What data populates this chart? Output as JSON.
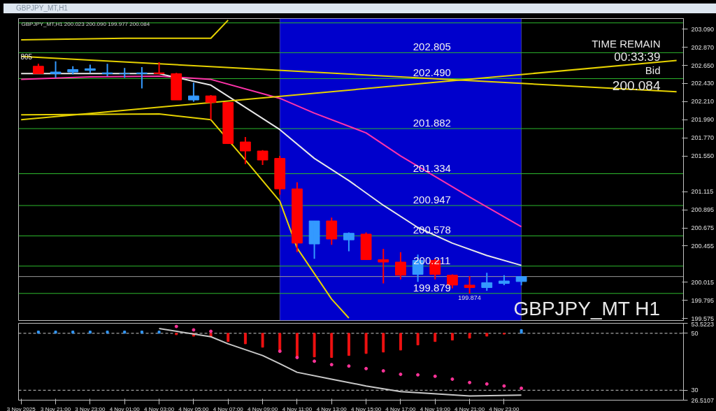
{
  "chart_data": [
    {
      "type": "candlestick",
      "title": "GBPJPY_MT,H1",
      "subtitle": "GBPJPY_MT,H1  200.023 200.090 199.977 200.084",
      "x": [
        "2025-11-03T20:00",
        "2025-11-03T21:00",
        "2025-11-03T22:00",
        "2025-11-03T23:00",
        "2025-11-04T00:00",
        "2025-11-04T01:00",
        "2025-11-04T02:00",
        "2025-11-04T03:00",
        "2025-11-04T04:00",
        "2025-11-04T05:00",
        "2025-11-04T06:00",
        "2025-11-04T07:00",
        "2025-11-04T08:00",
        "2025-11-04T09:00",
        "2025-11-04T10:00",
        "2025-11-04T11:00",
        "2025-11-04T12:00",
        "2025-11-04T13:00",
        "2025-11-04T14:00",
        "2025-11-04T15:00",
        "2025-11-04T16:00",
        "2025-11-04T17:00",
        "2025-11-04T18:00",
        "2025-11-04T19:00",
        "2025-11-04T20:00",
        "2025-11-04T21:00",
        "2025-11-04T22:00",
        "2025-11-04T23:00",
        "2025-11-05T00:00"
      ],
      "ohlc": [
        [
          202.64,
          202.67,
          202.55,
          202.55
        ],
        [
          202.55,
          202.7,
          202.5,
          202.57
        ],
        [
          202.57,
          202.64,
          202.54,
          202.6
        ],
        [
          202.59,
          202.66,
          202.56,
          202.61
        ],
        [
          202.55,
          202.67,
          202.52,
          202.56
        ],
        [
          202.55,
          202.62,
          202.5,
          202.55
        ],
        [
          202.55,
          202.63,
          202.37,
          202.56
        ],
        [
          202.56,
          202.69,
          202.54,
          202.55
        ],
        [
          202.55,
          202.56,
          202.23,
          202.23
        ],
        [
          202.23,
          202.44,
          202.21,
          202.28
        ],
        [
          202.28,
          202.29,
          201.99,
          202.2
        ],
        [
          202.2,
          202.2,
          201.7,
          201.7
        ],
        [
          201.72,
          201.78,
          201.45,
          201.61
        ],
        [
          201.61,
          201.62,
          201.44,
          201.5
        ],
        [
          201.52,
          201.55,
          201.08,
          201.15
        ],
        [
          201.15,
          201.23,
          200.38,
          200.49
        ],
        [
          200.48,
          200.76,
          200.3,
          200.76
        ],
        [
          200.76,
          200.8,
          200.47,
          200.54
        ],
        [
          200.53,
          200.62,
          200.39,
          200.61
        ],
        [
          200.6,
          200.62,
          200.29,
          200.29
        ],
        [
          200.29,
          200.42,
          200.0,
          200.26
        ],
        [
          200.26,
          200.38,
          200.05,
          200.1
        ],
        [
          200.11,
          200.35,
          200.02,
          200.28
        ],
        [
          200.28,
          200.3,
          200.05,
          200.11
        ],
        [
          200.1,
          200.11,
          199.94,
          199.98
        ],
        [
          199.98,
          200.09,
          199.874,
          199.95
        ],
        [
          199.95,
          200.13,
          199.91,
          200.01
        ],
        [
          200.0,
          200.1,
          199.98,
          200.03
        ],
        [
          200.023,
          200.09,
          199.977,
          200.084
        ]
      ],
      "series": [
        {
          "type": "line",
          "color": "#ff33aa",
          "x": [
            "2025-11-03T19:00",
            "2025-11-03T23:00",
            "2025-11-04T03:00",
            "2025-11-04T06:00",
            "2025-11-04T10:00",
            "2025-11-04T12:00",
            "2025-11-04T15:00",
            "2025-11-04T17:00",
            "2025-11-04T21:00",
            "2025-11-05T00:00"
          ],
          "values": [
            202.48,
            202.51,
            202.52,
            202.48,
            202.25,
            202.07,
            201.83,
            201.55,
            201.05,
            200.69
          ]
        },
        {
          "type": "line",
          "color": "#e8e8e8",
          "x": [
            "2025-11-03T19:00",
            "2025-11-04T03:00",
            "2025-11-04T06:00",
            "2025-11-04T08:00",
            "2025-11-04T10:00",
            "2025-11-04T12:00",
            "2025-11-04T14:00",
            "2025-11-04T16:00",
            "2025-11-04T18:00",
            "2025-11-04T20:00",
            "2025-11-04T22:00",
            "2025-11-05T00:00"
          ],
          "values": [
            202.55,
            202.55,
            202.41,
            202.14,
            201.87,
            201.52,
            201.25,
            200.95,
            200.68,
            200.49,
            200.34,
            200.22
          ]
        },
        {
          "type": "line",
          "color": "#e6d200",
          "x": [
            "2025-11-03T19:00",
            "2025-11-05T09:00"
          ],
          "values": [
            202.76,
            202.33
          ]
        },
        {
          "type": "line",
          "color": "#e6d200",
          "x": [
            "2025-11-03T19:00",
            "2025-11-05T09:00"
          ],
          "values": [
            201.99,
            202.71
          ]
        },
        {
          "type": "line",
          "color": "#e6d200",
          "x": [
            "2025-11-03T19:00",
            "2025-11-04T03:00",
            "2025-11-04T06:00",
            "2025-11-04T08:00",
            "2025-11-04T10:00",
            "2025-11-04T11:00",
            "2025-11-04T13:00",
            "2025-11-04T14:00"
          ],
          "values": [
            202.05,
            202.06,
            201.99,
            201.5,
            201.0,
            200.43,
            199.81,
            199.58
          ]
        },
        {
          "type": "line",
          "color": "#e6d200",
          "x": [
            "2025-11-03T19:00",
            "2025-11-04T01:00",
            "2025-11-04T06:00",
            "2025-11-04T07:00"
          ],
          "values": [
            202.96,
            202.98,
            202.98,
            203.2
          ]
        }
      ],
      "ref_lines": [
        {
          "axis": "y",
          "value": 203.167,
          "label": null,
          "color": "#2db82d"
        },
        {
          "axis": "y",
          "value": 202.805,
          "label": "202.805",
          "color": "#2db82d"
        },
        {
          "axis": "y",
          "value": 202.49,
          "label": "202.490",
          "color": "#2db82d"
        },
        {
          "axis": "y",
          "value": 201.882,
          "label": "201.882",
          "color": "#2db82d"
        },
        {
          "axis": "y",
          "value": 201.334,
          "label": "201.334",
          "color": "#2db82d"
        },
        {
          "axis": "y",
          "value": 200.947,
          "label": "200.947",
          "color": "#2db82d"
        },
        {
          "axis": "y",
          "value": 200.578,
          "label": "200.578",
          "color": "#2db82d"
        },
        {
          "axis": "y",
          "value": 200.211,
          "label": "200.211",
          "color": "#2db82d"
        },
        {
          "axis": "y",
          "value": 200.084,
          "label": null,
          "color": "#9a9a9a"
        },
        {
          "axis": "y",
          "value": 199.879,
          "label": "199.879",
          "color": "#2db82d"
        }
      ],
      "bands": [
        {
          "axis": "x",
          "from": "2025-11-04T10:00",
          "to": "2025-11-05T00:00",
          "label": null,
          "color": "#0000cc"
        }
      ],
      "annotations": [
        "805",
        "TIME REMAIN",
        "00:33:39",
        "Bid",
        "200.084",
        "GBPJPY_MT H1",
        {
          "text": "199.874",
          "x": "2025-11-04T21:00",
          "y": 199.874
        }
      ],
      "xlim": [
        "2025-11-03T18:51",
        "2025-11-05T09:24"
      ],
      "ylim": [
        199.55,
        203.22
      ],
      "yticks": [
        {
          "value": 203.09,
          "label": "203.090"
        },
        {
          "value": 202.87,
          "label": "202.870"
        },
        {
          "value": 202.65,
          "label": "202.650"
        },
        {
          "value": 202.43,
          "label": "202.430"
        },
        {
          "value": 202.21,
          "label": "202.210"
        },
        {
          "value": 201.99,
          "label": "201.990"
        },
        {
          "value": 201.77,
          "label": "201.770"
        },
        {
          "value": 201.55,
          "label": "201.550"
        },
        {
          "value": 201.115,
          "label": "201.115"
        },
        {
          "value": 200.895,
          "label": "200.895"
        },
        {
          "value": 200.675,
          "label": "200.675"
        },
        {
          "value": 200.455,
          "label": "200.455"
        },
        {
          "value": 200.015,
          "label": "200.015"
        },
        {
          "value": 199.795,
          "label": "199.795"
        },
        {
          "value": 199.575,
          "label": "199.575"
        }
      ],
      "tick_labels": "y",
      "grid": false
    },
    {
      "type": "bar",
      "x": [
        "2025-11-03T20:00",
        "2025-11-03T21:00",
        "2025-11-03T22:00",
        "2025-11-03T23:00",
        "2025-11-04T00:00",
        "2025-11-04T01:00",
        "2025-11-04T02:00",
        "2025-11-04T03:00",
        "2025-11-04T04:00",
        "2025-11-04T05:00",
        "2025-11-04T06:00",
        "2025-11-04T07:00",
        "2025-11-04T08:00",
        "2025-11-04T09:00",
        "2025-11-04T10:00",
        "2025-11-04T11:00",
        "2025-11-04T12:00",
        "2025-11-04T13:00",
        "2025-11-04T14:00",
        "2025-11-04T15:00",
        "2025-11-04T16:00",
        "2025-11-04T17:00",
        "2025-11-04T18:00",
        "2025-11-04T19:00",
        "2025-11-04T20:00",
        "2025-11-04T21:00",
        "2025-11-04T22:00",
        "2025-11-04T23:00",
        "2025-11-05T00:00"
      ],
      "base": [
        50,
        50,
        50,
        50,
        50,
        50,
        50,
        50,
        50,
        50,
        50,
        50,
        50,
        50,
        50,
        50,
        50,
        50,
        50,
        50,
        50,
        50,
        50,
        50,
        50,
        50,
        50,
        50,
        50
      ],
      "values": [
        0.8,
        0.8,
        0.8,
        0.8,
        0.8,
        0.8,
        0.8,
        0.8,
        -0.5,
        -1.0,
        -1.2,
        -2.9,
        -3.7,
        -4.9,
        -6.6,
        -8.5,
        -8.3,
        -8.5,
        -7.8,
        -7.1,
        -6.6,
        -5.9,
        -4.1,
        -2.9,
        -2.4,
        -1.7,
        -1.0,
        -0.3,
        1.3
      ],
      "colors": [
        "#3399ff",
        "#3399ff",
        "#3399ff",
        "#3399ff",
        "#3399ff",
        "#3399ff",
        "#3399ff",
        "#3399ff",
        "#ee1111",
        "#ee1111",
        "#ee1111",
        "#ee1111",
        "#ee1111",
        "#ee1111",
        "#ee1111",
        "#ee1111",
        "#ee1111",
        "#ee1111",
        "#ee1111",
        "#ee1111",
        "#ee1111",
        "#ee1111",
        "#ee1111",
        "#ee1111",
        "#ee1111",
        "#ee1111",
        "#ee1111",
        "#ee1111",
        "#3399ff"
      ],
      "series": [
        {
          "type": "line",
          "color": "#c8c8c8",
          "x": [
            "2025-11-04T03:00",
            "2025-11-04T06:00",
            "2025-11-04T07:00",
            "2025-11-04T09:00",
            "2025-11-04T10:00",
            "2025-11-04T11:00",
            "2025-11-04T13:00",
            "2025-11-04T15:00",
            "2025-11-04T17:00",
            "2025-11-04T21:00",
            "2025-11-05T00:00"
          ],
          "values": [
            51.7,
            48.8,
            46.3,
            42.2,
            39.3,
            36.3,
            33.9,
            31.5,
            29.5,
            28.0,
            28.3
          ]
        },
        {
          "type": "scatter",
          "color": "#ff3399",
          "x": [
            "2025-11-04T04:00",
            "2025-11-04T05:00",
            "2025-11-04T06:00",
            "2025-11-04T10:00",
            "2025-11-04T11:00",
            "2025-11-04T12:00",
            "2025-11-04T13:00",
            "2025-11-04T14:00",
            "2025-11-04T15:00",
            "2025-11-04T16:00",
            "2025-11-04T17:00",
            "2025-11-04T18:00",
            "2025-11-04T19:00",
            "2025-11-04T20:00",
            "2025-11-04T21:00",
            "2025-11-04T22:00",
            "2025-11-04T23:00",
            "2025-11-05T00:00"
          ],
          "values": [
            52.4,
            51.2,
            50.7,
            43.7,
            41.5,
            40.2,
            39.0,
            38.5,
            37.6,
            36.8,
            35.6,
            35.4,
            34.9,
            33.9,
            32.7,
            32.2,
            31.5,
            30.7
          ]
        }
      ],
      "ref_lines": [
        {
          "axis": "y",
          "value": 50,
          "label": null,
          "color": "#cccccc",
          "line_style": "dashed"
        },
        {
          "axis": "y",
          "value": 30,
          "label": null,
          "color": "#cccccc",
          "line_style": "dashed"
        }
      ],
      "xlim": [
        "2025-11-03T18:51",
        "2025-11-05T09:24"
      ],
      "ylim": [
        26.5107,
        53.5223
      ],
      "yticks": [
        53.5223,
        50,
        30,
        26.5107
      ],
      "xticks": [
        {
          "value": "2025-11-03T19:00",
          "label": "3 Nov 2025"
        },
        {
          "value": "2025-11-03T21:00",
          "label": "3 Nov 21:00"
        },
        {
          "value": "2025-11-03T23:00",
          "label": "3 Nov 23:00"
        },
        {
          "value": "2025-11-04T01:00",
          "label": "4 Nov 01:00"
        },
        {
          "value": "2025-11-04T03:00",
          "label": "4 Nov 03:00"
        },
        {
          "value": "2025-11-04T05:00",
          "label": "4 Nov 05:00"
        },
        {
          "value": "2025-11-04T07:00",
          "label": "4 Nov 07:00"
        },
        {
          "value": "2025-11-04T09:00",
          "label": "4 Nov 09:00"
        },
        {
          "value": "2025-11-04T11:00",
          "label": "4 Nov 11:00"
        },
        {
          "value": "2025-11-04T13:00",
          "label": "4 Nov 13:00"
        },
        {
          "value": "2025-11-04T15:00",
          "label": "4 Nov 15:00"
        },
        {
          "value": "2025-11-04T17:00",
          "label": "4 Nov 17:00"
        },
        {
          "value": "2025-11-04T19:00",
          "label": "4 Nov 19:00"
        },
        {
          "value": "2025-11-04T21:00",
          "label": "4 Nov 21:00"
        },
        {
          "value": "2025-11-04T23:00",
          "label": "4 Nov 23:00"
        }
      ],
      "grid": false
    }
  ]
}
